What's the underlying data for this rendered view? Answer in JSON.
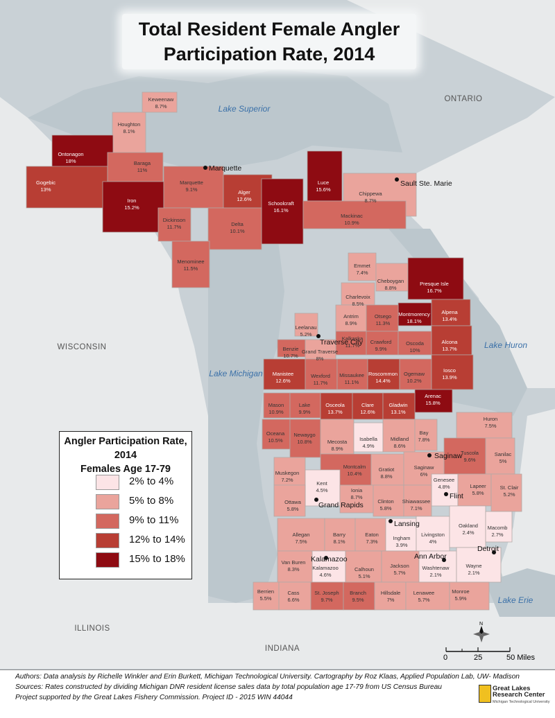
{
  "title_line1": "Total Resident Female Angler",
  "title_line2": "Participation Rate, 2014",
  "legend": {
    "title_line1": "Angler Participation Rate, 2014",
    "title_line2": "Females Age 17-79",
    "classes": [
      {
        "label": "2% to 4%",
        "color": "#fce4e6"
      },
      {
        "label": "5% to 8%",
        "color": "#eaa49c"
      },
      {
        "label": "9% to 11%",
        "color": "#d3685f"
      },
      {
        "label": "12% to 14%",
        "color": "#b83e34"
      },
      {
        "label": "15% to 18%",
        "color": "#8e0b12"
      }
    ]
  },
  "water_labels": [
    "Lake Superior",
    "Lake Michigan",
    "Lake Huron",
    "Lake Erie"
  ],
  "region_labels": [
    "ONTARIO",
    "WISCONSIN",
    "ILLINOIS",
    "INDIANA"
  ],
  "cities": [
    "Marquette",
    "Sault Ste. Marie",
    "Traverse City",
    "Saginaw",
    "Flint",
    "Grand Rapids",
    "Lansing",
    "Ann Arbor",
    "Detroit",
    "Kalamazoo"
  ],
  "counties": [
    {
      "name": "Keweenaw",
      "rate": "8.7%",
      "value": 8.7
    },
    {
      "name": "Houghton",
      "rate": "8.1%",
      "value": 8.1
    },
    {
      "name": "Ontonagon",
      "rate": "18%",
      "value": 18
    },
    {
      "name": "Gogebic",
      "rate": "13%",
      "value": 13
    },
    {
      "name": "Baraga",
      "rate": "11%",
      "value": 11
    },
    {
      "name": "Iron",
      "rate": "15.2%",
      "value": 15.2
    },
    {
      "name": "Marquette",
      "rate": "9.1%",
      "value": 9.1
    },
    {
      "name": "Alger",
      "rate": "12.6%",
      "value": 12.6
    },
    {
      "name": "Schoolcraft",
      "rate": "16.1%",
      "value": 16.1
    },
    {
      "name": "Luce",
      "rate": "15.6%",
      "value": 15.6
    },
    {
      "name": "Chippewa",
      "rate": "8.7%",
      "value": 8.7
    },
    {
      "name": "Mackinac",
      "rate": "10.9%",
      "value": 10.9
    },
    {
      "name": "Dickinson",
      "rate": "11.7%",
      "value": 11.7
    },
    {
      "name": "Delta",
      "rate": "10.1%",
      "value": 10.1
    },
    {
      "name": "Menominee",
      "rate": "11.5%",
      "value": 11.5
    },
    {
      "name": "Emmet",
      "rate": "7.4%",
      "value": 7.4
    },
    {
      "name": "Cheboygan",
      "rate": "8.8%",
      "value": 8.8
    },
    {
      "name": "Presque Isle",
      "rate": "16.7%",
      "value": 16.7
    },
    {
      "name": "Charlevoix",
      "rate": "8.5%",
      "value": 8.5
    },
    {
      "name": "Montmorency",
      "rate": "18.1%",
      "value": 18.1
    },
    {
      "name": "Alpena",
      "rate": "13.4%",
      "value": 13.4
    },
    {
      "name": "Antrim",
      "rate": "8.9%",
      "value": 8.9
    },
    {
      "name": "Otsego",
      "rate": "11.3%",
      "value": 11.3
    },
    {
      "name": "Leelanau",
      "rate": "5.2%",
      "value": 5.2
    },
    {
      "name": "Kalkaska",
      "rate": "11.7%",
      "value": 11.7
    },
    {
      "name": "Crawford",
      "rate": "9.9%",
      "value": 9.9
    },
    {
      "name": "Oscoda",
      "rate": "10%",
      "value": 10
    },
    {
      "name": "Alcona",
      "rate": "13.7%",
      "value": 13.7
    },
    {
      "name": "Benzie",
      "rate": "10.7%",
      "value": 10.7
    },
    {
      "name": "Grand Traverse",
      "rate": "8%",
      "value": 8
    },
    {
      "name": "Manistee",
      "rate": "12.6%",
      "value": 12.6
    },
    {
      "name": "Wexford",
      "rate": "11.7%",
      "value": 11.7
    },
    {
      "name": "Missaukee",
      "rate": "11.1%",
      "value": 11.1
    },
    {
      "name": "Roscommon",
      "rate": "14.4%",
      "value": 14.4
    },
    {
      "name": "Ogemaw",
      "rate": "10.2%",
      "value": 10.2
    },
    {
      "name": "Iosco",
      "rate": "13.9%",
      "value": 13.9
    },
    {
      "name": "Arenac",
      "rate": "15.8%",
      "value": 15.8
    },
    {
      "name": "Mason",
      "rate": "10.9%",
      "value": 10.9
    },
    {
      "name": "Lake",
      "rate": "9.9%",
      "value": 9.9
    },
    {
      "name": "Osceola",
      "rate": "13.7%",
      "value": 13.7
    },
    {
      "name": "Clare",
      "rate": "12.6%",
      "value": 12.6
    },
    {
      "name": "Gladwin",
      "rate": "13.1%",
      "value": 13.1
    },
    {
      "name": "Huron",
      "rate": "7.5%",
      "value": 7.5
    },
    {
      "name": "Oceana",
      "rate": "10.5%",
      "value": 10.5
    },
    {
      "name": "Newaygo",
      "rate": "10.8%",
      "value": 10.8
    },
    {
      "name": "Mecosta",
      "rate": "8.9%",
      "value": 8.9
    },
    {
      "name": "Isabella",
      "rate": "4.9%",
      "value": 4.9
    },
    {
      "name": "Midland",
      "rate": "8.6%",
      "value": 8.6
    },
    {
      "name": "Bay",
      "rate": "7.8%",
      "value": 7.8
    },
    {
      "name": "Tuscola",
      "rate": "9.6%",
      "value": 9.6
    },
    {
      "name": "Sanilac",
      "rate": "5%",
      "value": 5
    },
    {
      "name": "Muskegon",
      "rate": "7.2%",
      "value": 7.2
    },
    {
      "name": "Montcalm",
      "rate": "10.4%",
      "value": 10.4
    },
    {
      "name": "Gratiot",
      "rate": "8.8%",
      "value": 8.8
    },
    {
      "name": "Saginaw",
      "rate": "6%",
      "value": 6
    },
    {
      "name": "Kent",
      "rate": "4.5%",
      "value": 4.5
    },
    {
      "name": "Ionia",
      "rate": "8.7%",
      "value": 8.7
    },
    {
      "name": "Genesee",
      "rate": "4.8%",
      "value": 4.8
    },
    {
      "name": "Lapeer",
      "rate": "5.8%",
      "value": 5.8
    },
    {
      "name": "St. Clair",
      "rate": "5.2%",
      "value": 5.2
    },
    {
      "name": "Ottawa",
      "rate": "5.8%",
      "value": 5.8
    },
    {
      "name": "Clinton",
      "rate": "5.8%",
      "value": 5.8
    },
    {
      "name": "Shiawassee",
      "rate": "7.1%",
      "value": 7.1
    },
    {
      "name": "Allegan",
      "rate": "7.5%",
      "value": 7.5
    },
    {
      "name": "Barry",
      "rate": "8.1%",
      "value": 8.1
    },
    {
      "name": "Eaton",
      "rate": "7.3%",
      "value": 7.3
    },
    {
      "name": "Ingham",
      "rate": "3.9%",
      "value": 3.9
    },
    {
      "name": "Livingston",
      "rate": "4%",
      "value": 4
    },
    {
      "name": "Oakland",
      "rate": "2.4%",
      "value": 2.4
    },
    {
      "name": "Macomb",
      "rate": "2.7%",
      "value": 2.7
    },
    {
      "name": "Van Buren",
      "rate": "8.3%",
      "value": 8.3
    },
    {
      "name": "Kalamazoo",
      "rate": "4.6%",
      "value": 4.6
    },
    {
      "name": "Calhoun",
      "rate": "5.1%",
      "value": 5.1
    },
    {
      "name": "Jackson",
      "rate": "5.7%",
      "value": 5.7
    },
    {
      "name": "Washtenaw",
      "rate": "2.1%",
      "value": 2.1
    },
    {
      "name": "Wayne",
      "rate": "2.1%",
      "value": 2.1
    },
    {
      "name": "Berrien",
      "rate": "5.5%",
      "value": 5.5
    },
    {
      "name": "Cass",
      "rate": "6.6%",
      "value": 6.6
    },
    {
      "name": "St. Joseph",
      "rate": "9.7%",
      "value": 9.7
    },
    {
      "name": "Branch",
      "rate": "9.5%",
      "value": 9.5
    },
    {
      "name": "Hillsdale",
      "rate": "7%",
      "value": 7
    },
    {
      "name": "Lenawee",
      "rate": "5.7%",
      "value": 5.7
    },
    {
      "name": "Monroe",
      "rate": "5.9%",
      "value": 5.9
    }
  ],
  "scale": {
    "ticks": [
      "0",
      "25",
      "50 Miles"
    ]
  },
  "north_label": "N",
  "footer": {
    "line1": "Authors: Data analysis by Richelle Winkler and Erin Burkett, Michigan Technological University. Cartography by Roz Klaas, Applied Population Lab, UW- Madison",
    "line2": "Sources: Rates constructed by dividing Michigan DNR resident license sales data by total population age 17-79 from US Census Bureau",
    "line3": "Project supported by the Great Lakes Fishery Commission. Project ID - 2015 WIN 44044"
  },
  "logo": {
    "line1": "Great Lakes",
    "line2": "Research Center",
    "sub": "Michigan Technological University"
  }
}
